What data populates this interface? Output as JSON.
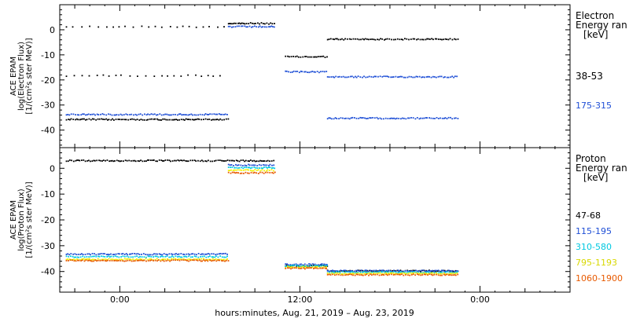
{
  "xaxis": {
    "ticks": [
      {
        "t": 0,
        "label": "0:00"
      },
      {
        "t": 12,
        "label": "12:00"
      },
      {
        "t": 24,
        "label": "0:00"
      }
    ],
    "range": [
      -4,
      30
    ],
    "title": "hours:minutes, Aug. 21, 2019 – Aug. 23, 2019"
  },
  "colors": {
    "black": "#000000",
    "blue": "#1f4fd6",
    "cyan": "#00c8e0",
    "yellow": "#f0f000",
    "orange": "#e85a00"
  },
  "chart_data": [
    {
      "type": "scatter",
      "ylabel_lines": [
        "ACE EPAM",
        "log(Electron Flux)",
        "[1/(cm²s ster MeV)]"
      ],
      "ylim": [
        -47,
        10
      ],
      "yticks": [
        0,
        -10,
        -20,
        -30,
        -40
      ],
      "legend_title_lines": [
        "Electron",
        "Energy ran",
        "[keV]"
      ],
      "series": [
        {
          "name": "38-53",
          "color": "#000000",
          "segments": [
            {
              "x": [
                -3.6,
                7.2
              ],
              "y": 1.5
            },
            {
              "x": [
                7.2,
                10.3
              ],
              "y": 2.8
            },
            {
              "x": [
                11.0,
                13.8
              ],
              "y": -10.5
            },
            {
              "x": [
                13.8,
                22.5
              ],
              "y": -3.5
            },
            {
              "x": [
                -3.6,
                7.2
              ],
              "y": -18
            },
            {
              "x": [
                -3.6,
                7.2
              ],
              "y": -35.5
            }
          ]
        },
        {
          "name": "175-315",
          "color": "#1f4fd6",
          "segments": [
            {
              "x": [
                -3.6,
                7.2
              ],
              "y": -33.5
            },
            {
              "x": [
                7.2,
                10.3
              ],
              "y": 1.5
            },
            {
              "x": [
                11.0,
                13.8
              ],
              "y": -16.5
            },
            {
              "x": [
                13.8,
                22.5
              ],
              "y": -35
            },
            {
              "x": [
                13.8,
                22.5
              ],
              "y": -18.5
            }
          ]
        }
      ]
    },
    {
      "type": "scatter",
      "ylabel_lines": [
        "ACE EPAM",
        "log(Proton Flux)",
        "[1/(cm²s ster MeV)]"
      ],
      "ylim": [
        -48,
        8
      ],
      "yticks": [
        0,
        -10,
        -20,
        -30,
        -40
      ],
      "legend_title_lines": [
        "Proton",
        "Energy ran",
        "[keV]"
      ],
      "series": [
        {
          "name": "47-68",
          "color": "#000000",
          "segments": [
            {
              "x": [
                -3.6,
                10.3
              ],
              "y": 3.2
            },
            {
              "x": [
                11.0,
                13.8
              ],
              "y": -37.5
            },
            {
              "x": [
                13.8,
                22.5
              ],
              "y": -39.5
            }
          ]
        },
        {
          "name": "115-195",
          "color": "#1f4fd6",
          "segments": [
            {
              "x": [
                -3.6,
                7.2
              ],
              "y": -33
            },
            {
              "x": [
                7.2,
                10.3
              ],
              "y": 1.5
            },
            {
              "x": [
                11.0,
                13.8
              ],
              "y": -37
            },
            {
              "x": [
                13.8,
                22.5
              ],
              "y": -39.5
            }
          ]
        },
        {
          "name": "310-580",
          "color": "#00c8e0",
          "segments": [
            {
              "x": [
                -3.6,
                7.2
              ],
              "y": -34
            },
            {
              "x": [
                7.2,
                10.3
              ],
              "y": 0.5
            },
            {
              "x": [
                11.0,
                13.8
              ],
              "y": -37.5
            },
            {
              "x": [
                13.8,
                22.5
              ],
              "y": -40
            }
          ]
        },
        {
          "name": "795-1193",
          "color": "#f0f000",
          "segments": [
            {
              "x": [
                -3.6,
                7.2
              ],
              "y": -35
            },
            {
              "x": [
                7.2,
                10.3
              ],
              "y": -0.5
            },
            {
              "x": [
                11.0,
                13.8
              ],
              "y": -38
            },
            {
              "x": [
                13.8,
                22.5
              ],
              "y": -40.5
            }
          ]
        },
        {
          "name": "1060-1900",
          "color": "#e85a00",
          "segments": [
            {
              "x": [
                -3.6,
                7.2
              ],
              "y": -35.5
            },
            {
              "x": [
                7.2,
                10.3
              ],
              "y": -1.5
            },
            {
              "x": [
                11.0,
                13.8
              ],
              "y": -38.5
            },
            {
              "x": [
                13.8,
                22.5
              ],
              "y": -41
            }
          ]
        }
      ]
    }
  ]
}
